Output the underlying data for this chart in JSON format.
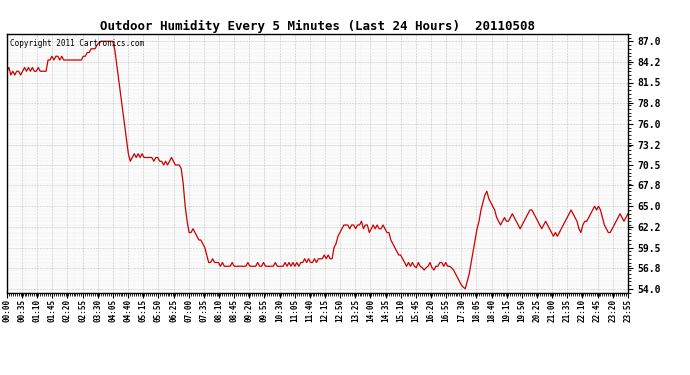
{
  "title": "Outdoor Humidity Every 5 Minutes (Last 24 Hours)  20110508",
  "copyright_text": "Copyright 2011 Cartronics.com",
  "line_color": "#cc0000",
  "background_color": "#ffffff",
  "grid_color": "#aaaaaa",
  "yticks": [
    54.0,
    56.8,
    59.5,
    62.2,
    65.0,
    67.8,
    70.5,
    73.2,
    76.0,
    78.8,
    81.5,
    84.2,
    87.0
  ],
  "ylim": [
    53.5,
    88.0
  ],
  "xtick_labels": [
    "00:00",
    "00:35",
    "01:10",
    "01:45",
    "02:20",
    "02:55",
    "03:30",
    "04:05",
    "04:40",
    "05:15",
    "05:50",
    "06:25",
    "07:00",
    "07:35",
    "08:10",
    "08:45",
    "09:20",
    "09:55",
    "10:30",
    "11:05",
    "11:40",
    "12:15",
    "12:50",
    "13:25",
    "14:00",
    "14:35",
    "15:10",
    "15:45",
    "16:20",
    "16:55",
    "17:30",
    "18:05",
    "18:40",
    "19:15",
    "19:50",
    "20:25",
    "21:00",
    "21:35",
    "22:10",
    "22:45",
    "23:20",
    "23:55"
  ],
  "humidity_values": [
    83.0,
    83.5,
    82.5,
    83.0,
    82.5,
    83.0,
    83.0,
    82.5,
    83.0,
    83.5,
    83.0,
    83.5,
    83.0,
    83.5,
    83.0,
    83.0,
    83.5,
    83.0,
    83.0,
    83.0,
    83.0,
    84.5,
    84.5,
    85.0,
    84.5,
    85.0,
    85.0,
    84.5,
    85.0,
    84.5,
    84.5,
    84.5,
    84.5,
    84.5,
    84.5,
    84.5,
    84.5,
    84.5,
    84.5,
    85.0,
    85.0,
    85.5,
    85.5,
    86.0,
    86.0,
    86.0,
    86.5,
    86.8,
    87.0,
    87.0,
    87.0,
    87.0,
    87.0,
    87.0,
    87.0,
    86.0,
    84.0,
    82.0,
    80.0,
    78.0,
    76.0,
    74.0,
    72.0,
    71.0,
    71.5,
    72.0,
    71.5,
    72.0,
    71.5,
    72.0,
    71.5,
    71.5,
    71.5,
    71.5,
    71.5,
    71.0,
    71.5,
    71.5,
    71.0,
    71.0,
    70.5,
    71.0,
    70.5,
    71.0,
    71.5,
    71.0,
    70.5,
    70.5,
    70.5,
    70.0,
    68.0,
    65.0,
    63.0,
    61.5,
    61.5,
    62.0,
    61.5,
    61.0,
    60.5,
    60.5,
    60.0,
    59.5,
    58.5,
    57.5,
    57.5,
    58.0,
    57.5,
    57.5,
    57.5,
    57.0,
    57.5,
    57.0,
    57.0,
    57.0,
    57.0,
    57.5,
    57.0,
    57.0,
    57.0,
    57.0,
    57.0,
    57.0,
    57.0,
    57.5,
    57.0,
    57.0,
    57.0,
    57.0,
    57.5,
    57.0,
    57.0,
    57.5,
    57.0,
    57.0,
    57.0,
    57.0,
    57.0,
    57.5,
    57.0,
    57.0,
    57.0,
    57.0,
    57.5,
    57.0,
    57.5,
    57.0,
    57.5,
    57.0,
    57.5,
    57.0,
    57.5,
    57.5,
    58.0,
    57.5,
    58.0,
    57.5,
    57.5,
    58.0,
    57.5,
    58.0,
    58.0,
    58.0,
    58.5,
    58.0,
    58.5,
    58.0,
    58.0,
    59.5,
    60.0,
    61.0,
    61.5,
    62.0,
    62.5,
    62.5,
    62.5,
    62.0,
    62.5,
    62.5,
    62.0,
    62.5,
    62.5,
    63.0,
    62.0,
    62.5,
    62.5,
    61.5,
    62.0,
    62.5,
    62.0,
    62.5,
    62.0,
    62.0,
    62.5,
    62.0,
    61.5,
    61.5,
    60.5,
    60.0,
    59.5,
    59.0,
    58.5,
    58.5,
    58.0,
    57.5,
    57.0,
    57.5,
    57.0,
    57.5,
    57.0,
    56.8,
    57.5,
    57.0,
    56.8,
    56.5,
    56.8,
    57.0,
    57.5,
    56.8,
    56.5,
    57.0,
    57.0,
    57.5,
    57.5,
    57.0,
    57.5,
    57.0,
    57.0,
    56.8,
    56.5,
    56.0,
    55.5,
    55.0,
    54.5,
    54.2,
    54.0,
    55.0,
    56.0,
    57.5,
    59.0,
    60.5,
    62.0,
    63.0,
    64.5,
    65.5,
    66.5,
    67.0,
    66.0,
    65.5,
    65.0,
    64.5,
    63.5,
    63.0,
    62.5,
    63.0,
    63.5,
    63.0,
    63.0,
    63.5,
    64.0,
    63.5,
    63.0,
    62.5,
    62.0,
    62.5,
    63.0,
    63.5,
    64.0,
    64.5,
    64.5,
    64.0,
    63.5,
    63.0,
    62.5,
    62.0,
    62.5,
    63.0,
    62.5,
    62.0,
    61.5,
    61.0,
    61.5,
    61.0,
    61.5,
    62.0,
    62.5,
    63.0,
    63.5,
    64.0,
    64.5,
    64.0,
    63.5,
    63.0,
    62.0,
    61.5,
    62.5,
    63.0,
    63.0,
    63.5,
    64.0,
    64.5,
    65.0,
    64.5,
    65.0,
    64.5,
    63.5,
    62.5,
    62.0,
    61.5,
    61.5,
    62.0,
    62.5,
    63.0,
    63.5,
    64.0,
    63.5,
    63.0,
    63.5,
    64.0
  ]
}
